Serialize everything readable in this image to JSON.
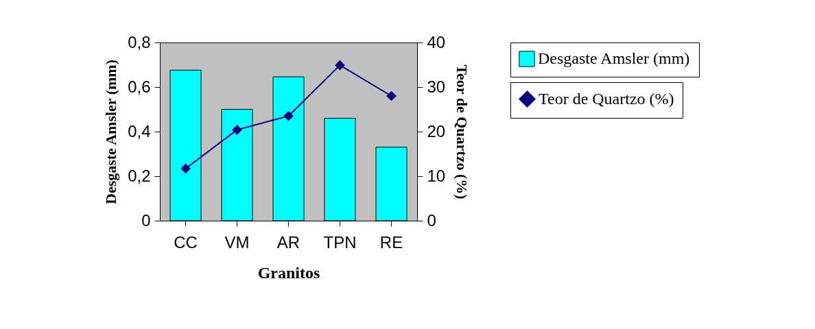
{
  "chart_data": {
    "type": "bar",
    "xlabel": "Granitos",
    "ylabel": "Desgaste Amsler (mm)",
    "y2label": "Teor de Quartzo (%)",
    "categories": [
      "CC",
      "VM",
      "AR",
      "TPN",
      "RE"
    ],
    "series": [
      {
        "name": "Desgaste Amsler (mm)",
        "color": "#00ffff",
        "values": [
          0.676,
          0.5,
          0.646,
          0.46,
          0.33
        ]
      },
      {
        "name": "Teor de Quartzo (%)",
        "type": "line",
        "axis": "y2",
        "color": "#000080",
        "marker": "diamond",
        "values": [
          11.7,
          20.4,
          23.5,
          34.9,
          28.0
        ]
      }
    ],
    "ylim": [
      0,
      0.8
    ],
    "yticks": [
      {
        "value": 0,
        "label": "0"
      },
      {
        "value": 0.2,
        "label": "0,2"
      },
      {
        "value": 0.4,
        "label": "0,4"
      },
      {
        "value": 0.6,
        "label": "0,6"
      },
      {
        "value": 0.8,
        "label": "0,8"
      }
    ],
    "y2lim": [
      0,
      40
    ],
    "y2ticks": [
      0,
      10,
      20,
      30,
      40
    ],
    "grid": false,
    "legend": "right"
  }
}
